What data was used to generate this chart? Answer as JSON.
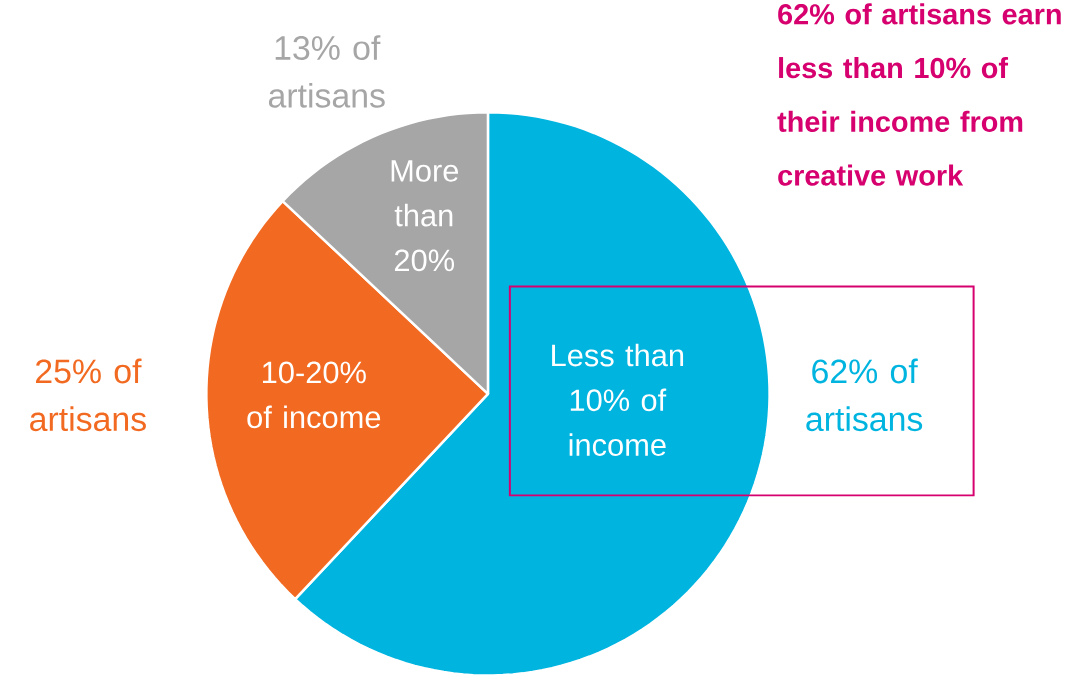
{
  "chart_data": {
    "type": "pie",
    "title": "62% of artisans earn less than 10% of their income from creative work",
    "categories": [
      "Less than 10% of income",
      "10-20% of income",
      "More than 20%"
    ],
    "values": [
      62,
      25,
      13
    ],
    "colors": [
      "#00b4e0",
      "#f26a21",
      "#a6a6a6"
    ],
    "value_labels": [
      "62% of artisans",
      "25% of artisans",
      "13% of artisans"
    ]
  }
}
